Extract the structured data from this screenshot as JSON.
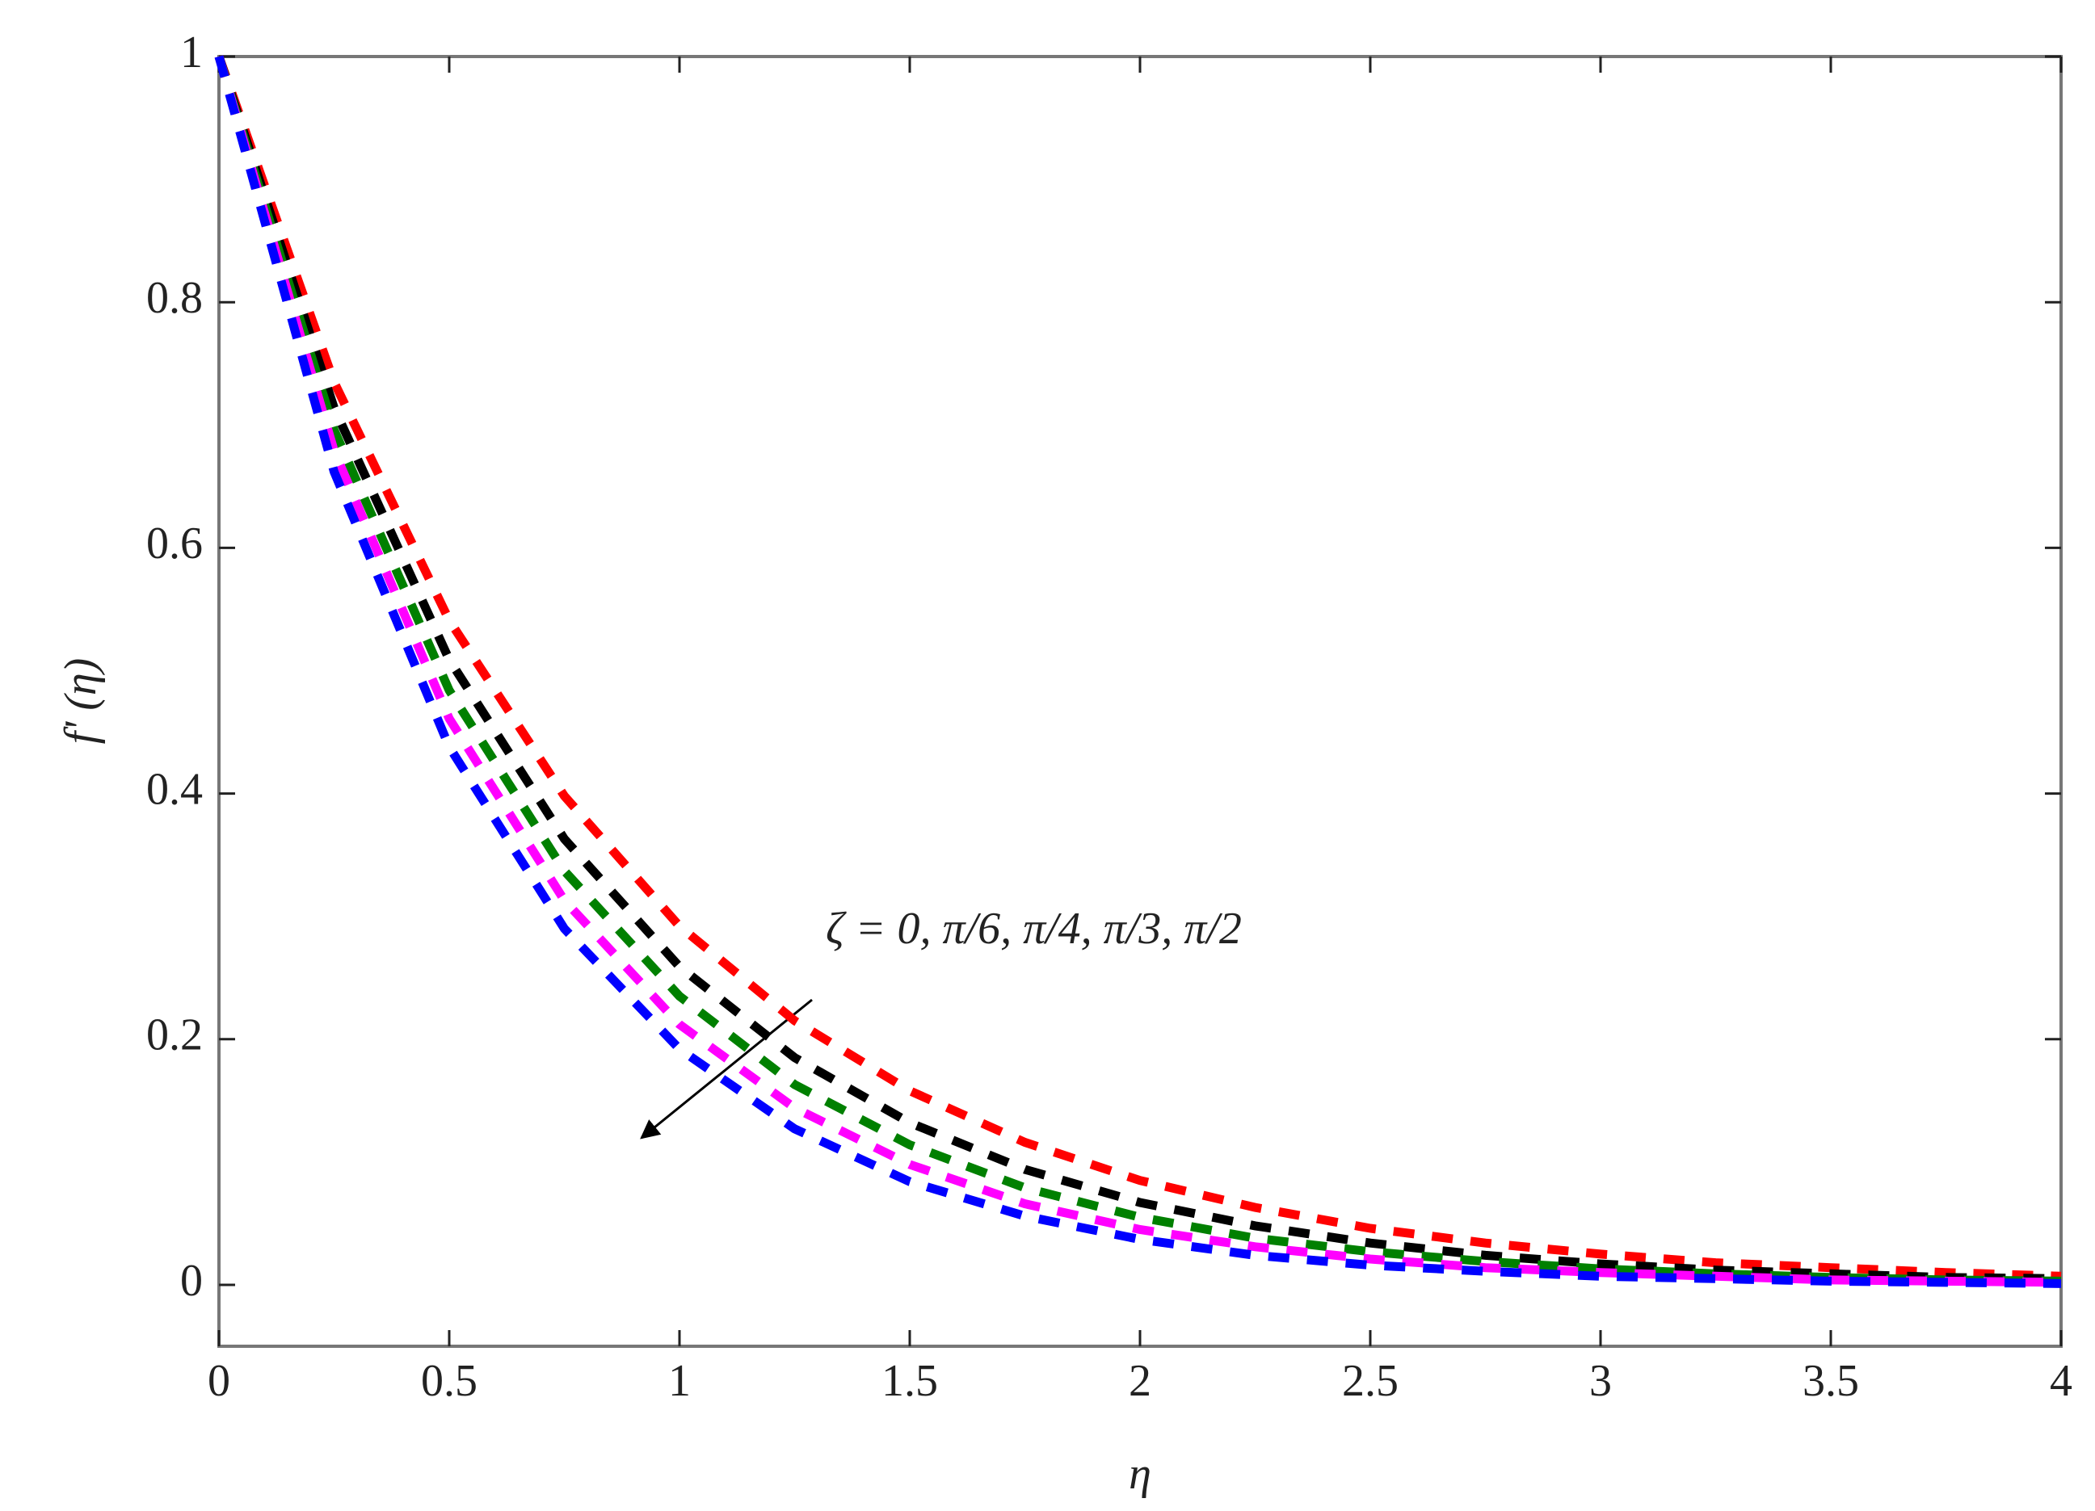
{
  "chart_data": {
    "type": "line",
    "xlabel": "η",
    "ylabel": "f' (η)",
    "annotation": "ζ = 0, π/6, π/4, π/3, π/2",
    "x": [
      0,
      0.25,
      0.5,
      0.75,
      1,
      1.25,
      1.5,
      1.75,
      2,
      2.25,
      2.5,
      2.75,
      3,
      3.25,
      3.5,
      3.75,
      4
    ],
    "series": [
      {
        "color": "#ff0000",
        "values": [
          1,
          0.735,
          0.541,
          0.398,
          0.292,
          0.215,
          0.158,
          0.116,
          0.085,
          0.063,
          0.046,
          0.034,
          0.025,
          0.018,
          0.014,
          0.01,
          0.007
        ]
      },
      {
        "color": "#000000",
        "values": [
          1,
          0.714,
          0.509,
          0.363,
          0.259,
          0.185,
          0.132,
          0.094,
          0.067,
          0.048,
          0.034,
          0.024,
          0.017,
          0.012,
          0.009,
          0.006,
          0.005
        ]
      },
      {
        "color": "#008000",
        "values": [
          1,
          0.696,
          0.484,
          0.337,
          0.235,
          0.163,
          0.114,
          0.079,
          0.055,
          0.038,
          0.027,
          0.019,
          0.013,
          0.009,
          0.006,
          0.004,
          0.003
        ]
      },
      {
        "color": "#ff00ff",
        "values": [
          1,
          0.679,
          0.461,
          0.313,
          0.212,
          0.144,
          0.098,
          0.066,
          0.045,
          0.031,
          0.021,
          0.014,
          0.01,
          0.007,
          0.004,
          0.003,
          0.002
        ]
      },
      {
        "color": "#0000ff",
        "values": [
          1,
          0.662,
          0.438,
          0.29,
          0.192,
          0.127,
          0.084,
          0.056,
          0.037,
          0.024,
          0.016,
          0.011,
          0.007,
          0.005,
          0.003,
          0.002,
          0.001
        ]
      }
    ],
    "xlim": [
      0,
      4
    ],
    "xticks": [
      0,
      0.5,
      1,
      1.5,
      2,
      2.5,
      3,
      3.5,
      4
    ],
    "ylim": [
      -0.05,
      1
    ],
    "yticks": [
      0,
      0.2,
      0.4,
      0.6,
      0.8,
      1
    ],
    "grid": false,
    "line_style": "dashed"
  }
}
